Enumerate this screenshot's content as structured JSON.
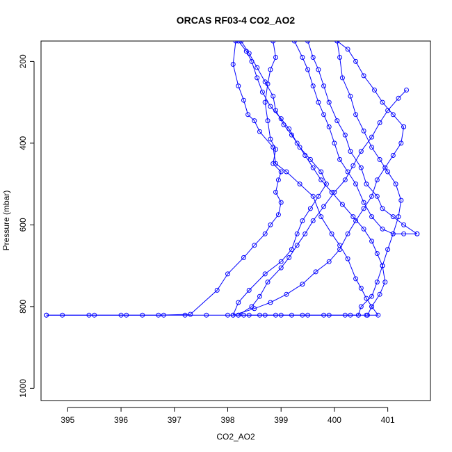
{
  "chart_data": {
    "type": "line",
    "title": "ORCAS RF03-4 CO2_AO2",
    "xlabel": "CO2_AO2",
    "ylabel": "Pressure (mbar)",
    "xlim": [
      394.5,
      401.8
    ],
    "ylim": [
      1030,
      150
    ],
    "y_reversed": true,
    "x_ticks": [
      395,
      396,
      397,
      398,
      399,
      400,
      401
    ],
    "y_ticks": [
      200,
      400,
      600,
      800,
      1000
    ],
    "grid": false,
    "legend": "none",
    "marker": "open-circle",
    "color": "#0000ff",
    "series": [
      {
        "points": [
          [
            398.15,
            150
          ],
          [
            398.1,
            207
          ],
          [
            398.2,
            260
          ],
          [
            398.3,
            295
          ],
          [
            398.38,
            330
          ],
          [
            398.5,
            345
          ],
          [
            398.6,
            372
          ],
          [
            398.85,
            410
          ],
          [
            398.9,
            450
          ],
          [
            399.1,
            470
          ],
          [
            399.35,
            500
          ],
          [
            399.6,
            530
          ],
          [
            399.75,
            580
          ],
          [
            399.95,
            622
          ],
          [
            400.1,
            650
          ],
          [
            400.25,
            683
          ],
          [
            400.4,
            732
          ],
          [
            400.5,
            755
          ],
          [
            400.6,
            780
          ],
          [
            400.7,
            800
          ],
          [
            400.82,
            821
          ],
          [
            400.6,
            821
          ],
          [
            400.3,
            821
          ],
          [
            399.9,
            821
          ],
          [
            399.5,
            821
          ],
          [
            399.2,
            821
          ],
          [
            398.9,
            821
          ],
          [
            398.6,
            821
          ],
          [
            398.3,
            821
          ],
          [
            398.0,
            821
          ],
          [
            397.6,
            821
          ],
          [
            397.2,
            821
          ],
          [
            396.8,
            821
          ],
          [
            396.4,
            821
          ],
          [
            396.0,
            821
          ],
          [
            395.5,
            821
          ],
          [
            394.9,
            821
          ],
          [
            394.6,
            821
          ]
        ]
      },
      {
        "points": [
          [
            394.6,
            821
          ],
          [
            395.4,
            821
          ],
          [
            396.1,
            821
          ],
          [
            396.7,
            821
          ],
          [
            397.3,
            819
          ],
          [
            397.8,
            760
          ],
          [
            398.0,
            720
          ],
          [
            398.3,
            680
          ],
          [
            398.5,
            650
          ],
          [
            398.7,
            622
          ],
          [
            398.8,
            600
          ],
          [
            398.95,
            575
          ],
          [
            399.0,
            545
          ],
          [
            398.9,
            520
          ],
          [
            398.95,
            490
          ],
          [
            399.0,
            470
          ],
          [
            398.85,
            450
          ],
          [
            398.9,
            415
          ],
          [
            398.8,
            390
          ],
          [
            398.75,
            345
          ],
          [
            398.7,
            300
          ],
          [
            398.75,
            255
          ],
          [
            398.8,
            220
          ],
          [
            398.9,
            190
          ],
          [
            398.85,
            150
          ]
        ]
      },
      {
        "points": [
          [
            399.25,
            150
          ],
          [
            399.4,
            190
          ],
          [
            399.5,
            220
          ],
          [
            399.6,
            260
          ],
          [
            399.7,
            300
          ],
          [
            399.8,
            330
          ],
          [
            399.9,
            360
          ],
          [
            400.0,
            400
          ],
          [
            400.1,
            440
          ],
          [
            400.25,
            470
          ],
          [
            400.4,
            500
          ],
          [
            400.55,
            545
          ],
          [
            400.7,
            580
          ],
          [
            400.9,
            610
          ],
          [
            401.1,
            622
          ],
          [
            401.3,
            622
          ],
          [
            401.55,
            622
          ]
        ]
      },
      {
        "points": [
          [
            401.55,
            622
          ],
          [
            401.3,
            600
          ],
          [
            401.1,
            580
          ],
          [
            400.9,
            560
          ],
          [
            400.8,
            530
          ],
          [
            400.6,
            500
          ],
          [
            400.5,
            460
          ],
          [
            400.3,
            420
          ],
          [
            400.2,
            380
          ],
          [
            400.05,
            345
          ],
          [
            399.9,
            300
          ],
          [
            399.8,
            260
          ],
          [
            399.7,
            220
          ],
          [
            399.6,
            190
          ],
          [
            399.5,
            150
          ]
        ]
      },
      {
        "points": [
          [
            398.25,
            150
          ],
          [
            398.4,
            180
          ],
          [
            398.55,
            215
          ],
          [
            398.7,
            250
          ],
          [
            398.85,
            285
          ],
          [
            398.9,
            320
          ],
          [
            399.05,
            355
          ],
          [
            399.2,
            380
          ],
          [
            399.35,
            410
          ],
          [
            399.55,
            440
          ],
          [
            399.75,
            470
          ],
          [
            399.85,
            500
          ],
          [
            399.7,
            530
          ],
          [
            399.55,
            560
          ],
          [
            399.4,
            590
          ],
          [
            399.3,
            622
          ],
          [
            399.2,
            660
          ],
          [
            399.0,
            690
          ],
          [
            398.7,
            720
          ],
          [
            398.4,
            760
          ],
          [
            398.2,
            790
          ],
          [
            398.1,
            821
          ]
        ]
      },
      {
        "points": [
          [
            398.1,
            821
          ],
          [
            398.5,
            805
          ],
          [
            398.8,
            790
          ],
          [
            399.1,
            770
          ],
          [
            399.4,
            745
          ],
          [
            399.65,
            715
          ],
          [
            399.9,
            690
          ],
          [
            400.1,
            660
          ],
          [
            400.25,
            622
          ],
          [
            400.4,
            590
          ],
          [
            400.55,
            560
          ],
          [
            400.7,
            530
          ],
          [
            400.8,
            490
          ],
          [
            400.95,
            460
          ],
          [
            401.1,
            430
          ],
          [
            401.25,
            400
          ],
          [
            401.3,
            360
          ]
        ]
      },
      {
        "points": [
          [
            401.3,
            360
          ],
          [
            401.1,
            330
          ],
          [
            400.9,
            300
          ],
          [
            400.75,
            270
          ],
          [
            400.55,
            235
          ],
          [
            400.4,
            200
          ],
          [
            400.25,
            170
          ],
          [
            400.05,
            150
          ]
        ]
      },
      {
        "points": [
          [
            400.05,
            150
          ],
          [
            400.1,
            190
          ],
          [
            400.15,
            240
          ],
          [
            400.3,
            285
          ],
          [
            400.4,
            330
          ],
          [
            400.55,
            370
          ],
          [
            400.7,
            410
          ],
          [
            400.85,
            440
          ],
          [
            401.0,
            470
          ],
          [
            401.15,
            500
          ],
          [
            401.25,
            540
          ],
          [
            401.2,
            580
          ],
          [
            401.1,
            622
          ],
          [
            401.0,
            660
          ],
          [
            400.9,
            700
          ],
          [
            400.8,
            740
          ],
          [
            400.7,
            775
          ],
          [
            400.5,
            800
          ],
          [
            400.45,
            821
          ]
        ]
      },
      {
        "points": [
          [
            400.45,
            821
          ],
          [
            400.2,
            821
          ],
          [
            399.8,
            821
          ],
          [
            399.4,
            821
          ],
          [
            399.0,
            821
          ],
          [
            398.7,
            821
          ],
          [
            398.4,
            821
          ],
          [
            398.2,
            821
          ]
        ]
      },
      {
        "points": [
          [
            398.2,
            821
          ],
          [
            398.45,
            800
          ],
          [
            398.6,
            775
          ],
          [
            398.75,
            740
          ],
          [
            399.0,
            705
          ],
          [
            399.15,
            680
          ],
          [
            399.3,
            650
          ],
          [
            399.45,
            622
          ],
          [
            399.6,
            590
          ],
          [
            399.8,
            555
          ],
          [
            400.0,
            520
          ],
          [
            400.2,
            490
          ],
          [
            400.35,
            455
          ],
          [
            400.5,
            420
          ],
          [
            400.7,
            385
          ],
          [
            400.85,
            350
          ],
          [
            401.0,
            320
          ],
          [
            401.2,
            290
          ],
          [
            401.35,
            270
          ]
        ]
      },
      {
        "points": [
          [
            398.2,
            150
          ],
          [
            398.35,
            175
          ],
          [
            398.45,
            200
          ],
          [
            398.55,
            240
          ],
          [
            398.65,
            275
          ],
          [
            398.8,
            310
          ],
          [
            399.0,
            340
          ],
          [
            399.15,
            365
          ],
          [
            399.3,
            400
          ],
          [
            399.45,
            430
          ],
          [
            399.6,
            460
          ],
          [
            399.75,
            490
          ],
          [
            399.95,
            520
          ],
          [
            400.15,
            550
          ],
          [
            400.35,
            580
          ],
          [
            400.55,
            610
          ],
          [
            400.7,
            640
          ],
          [
            400.8,
            670
          ],
          [
            400.9,
            700
          ],
          [
            400.95,
            740
          ],
          [
            400.85,
            770
          ],
          [
            400.7,
            800
          ],
          [
            400.62,
            821
          ]
        ]
      }
    ]
  }
}
